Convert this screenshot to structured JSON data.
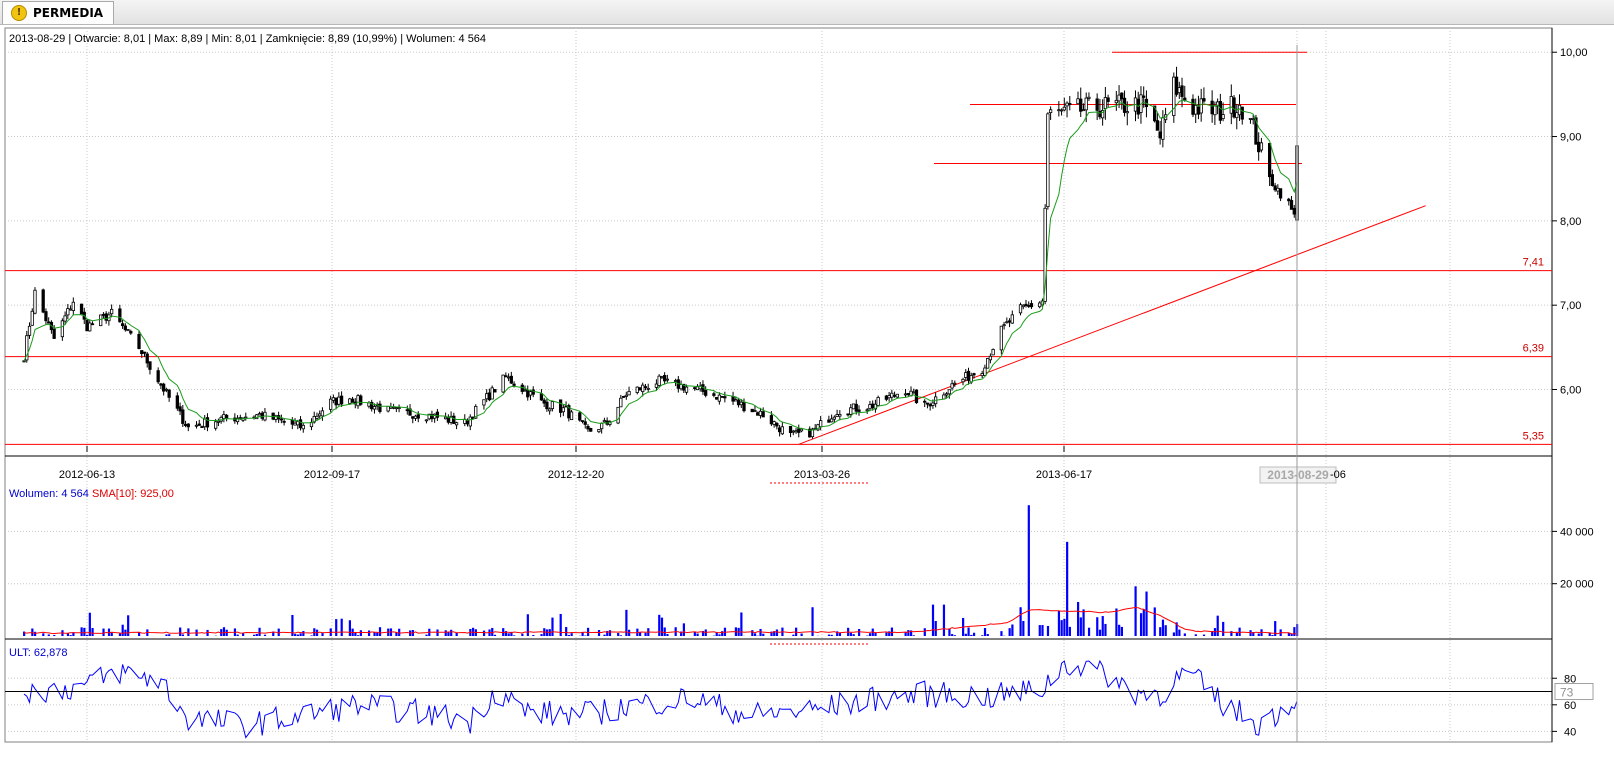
{
  "tab": {
    "label": "PERMEDIA",
    "icon": "warning-icon"
  },
  "colors": {
    "candle_up": "#ffffff",
    "candle_down": "#000000",
    "ma_line": "#1a9c1a",
    "level_line": "#ff0000",
    "volume_bar": "#0000ff",
    "volume_sma": "#ff0000",
    "ult_line": "#0000ff",
    "grid": "#c8c8c8"
  },
  "chart_data": [
    {
      "type": "candlestick",
      "info": {
        "date": "2013-08-29",
        "open_label": "Otwarcie: 8,01",
        "max_label": "Max: 8,89",
        "min_label": "Min: 8,01",
        "close_label": "Zamknięcie: 8,89 (10,99%)",
        "volume_label": "Wolumen: 4 564"
      },
      "x_ticks": [
        "2012-06-13",
        "2012-09-17",
        "2012-12-20",
        "2013-03-26",
        "2013-06-17",
        "2013-08-29",
        "-06"
      ],
      "y_ticks": [
        "10,00",
        "9,00",
        "8,00",
        "7,00",
        "6,00"
      ],
      "y_tick_values": [
        10,
        9,
        8,
        7,
        6
      ],
      "ylim": [
        5.33,
        10.05
      ],
      "price_levels": [
        {
          "value": 7.41,
          "label": "7,41"
        },
        {
          "value": 6.39,
          "label": "6,39"
        },
        {
          "value": 5.35,
          "label": "5,35"
        }
      ],
      "short_levels": [
        10.0,
        9.38,
        8.68
      ],
      "trendline": {
        "from": [
          "2013-02-28",
          5.35
        ],
        "to": [
          "2013-10-15",
          8.18
        ]
      },
      "last_close": 8.89,
      "anchors": [
        [
          "2012-05-21",
          6.4
        ],
        [
          "2012-05-25",
          7.15
        ],
        [
          "2012-06-01",
          6.6
        ],
        [
          "2012-06-08",
          7.05
        ],
        [
          "2012-06-13",
          6.75
        ],
        [
          "2012-06-22",
          6.9
        ],
        [
          "2012-07-02",
          6.5
        ],
        [
          "2012-07-12",
          5.95
        ],
        [
          "2012-07-20",
          5.55
        ],
        [
          "2012-08-01",
          5.65
        ],
        [
          "2012-08-15",
          5.7
        ],
        [
          "2012-08-31",
          5.55
        ],
        [
          "2012-09-10",
          5.85
        ],
        [
          "2012-09-17",
          5.9
        ],
        [
          "2012-10-01",
          5.75
        ],
        [
          "2012-10-15",
          5.7
        ],
        [
          "2012-10-29",
          5.6
        ],
        [
          "2012-11-06",
          5.9
        ],
        [
          "2012-11-13",
          6.15
        ],
        [
          "2012-11-26",
          5.85
        ],
        [
          "2012-12-05",
          5.75
        ],
        [
          "2012-12-13",
          5.5
        ],
        [
          "2012-12-20",
          5.6
        ],
        [
          "2012-12-27",
          5.95
        ],
        [
          "2013-01-08",
          6.1
        ],
        [
          "2013-01-22",
          6.0
        ],
        [
          "2013-02-05",
          5.85
        ],
        [
          "2013-02-15",
          5.7
        ],
        [
          "2013-02-25",
          5.45
        ],
        [
          "2013-03-05",
          5.5
        ],
        [
          "2013-03-14",
          5.75
        ],
        [
          "2013-03-26",
          5.8
        ],
        [
          "2013-04-08",
          6.0
        ],
        [
          "2013-04-15",
          5.8
        ],
        [
          "2013-04-25",
          6.05
        ],
        [
          "2013-05-06",
          6.25
        ],
        [
          "2013-05-13",
          6.7
        ],
        [
          "2013-05-20",
          6.95
        ],
        [
          "2013-05-28",
          7.05
        ],
        [
          "2013-05-30",
          9.25
        ],
        [
          "2013-06-17",
          9.35
        ],
        [
          "2013-07-04",
          9.38
        ],
        [
          "2013-07-10",
          9.0
        ],
        [
          "2013-07-15",
          9.6
        ],
        [
          "2013-07-22",
          9.35
        ],
        [
          "2013-08-01",
          9.3
        ],
        [
          "2013-08-08",
          9.4
        ],
        [
          "2013-08-13",
          9.1
        ],
        [
          "2013-08-19",
          8.5
        ],
        [
          "2013-08-26",
          8.2
        ],
        [
          "2013-08-28",
          8.05
        ],
        [
          "2013-08-29",
          8.89
        ]
      ]
    },
    {
      "type": "bar",
      "legend": {
        "volume_label": "Wolumen: 4 564",
        "sma_label": "SMA[10]: 925,00"
      },
      "y_ticks": [
        "40 000",
        "20 000"
      ],
      "y_tick_values": [
        40000,
        20000
      ],
      "ylim": [
        0,
        52000
      ],
      "spikes": [
        [
          "2013-05-23",
          50000
        ],
        [
          "2013-06-06",
          36000
        ],
        [
          "2013-05-20",
          11000
        ],
        [
          "2013-05-26",
          12000
        ],
        [
          "2013-06-10",
          13000
        ],
        [
          "2013-07-01",
          19000
        ],
        [
          "2013-07-05",
          17000
        ],
        [
          "2013-04-18",
          12000
        ],
        [
          "2013-04-22",
          12000
        ],
        [
          "2013-03-05",
          11000
        ],
        [
          "2013-02-07",
          9000
        ],
        [
          "2012-12-27",
          10000
        ]
      ],
      "sma": [
        [
          "2012-05-21",
          1200
        ],
        [
          "2013-04-10",
          1500
        ],
        [
          "2013-05-15",
          5000
        ],
        [
          "2013-05-23",
          10000
        ],
        [
          "2013-06-20",
          9000
        ],
        [
          "2013-07-01",
          11000
        ],
        [
          "2013-07-10",
          8000
        ],
        [
          "2013-07-20",
          2000
        ],
        [
          "2013-08-29",
          925
        ]
      ]
    },
    {
      "type": "line",
      "legend_label": "ULT: 62,878",
      "y_ticks": [
        "80",
        "60",
        "40"
      ],
      "y_tick_values": [
        80,
        60,
        40
      ],
      "ylim": [
        32,
        96
      ],
      "reference_line": 70,
      "cursor_label": "73",
      "anchors": [
        [
          "2012-05-21",
          70
        ],
        [
          "2012-06-10",
          73
        ],
        [
          "2012-06-25",
          85
        ],
        [
          "2012-07-10",
          78
        ],
        [
          "2012-07-20",
          50
        ],
        [
          "2012-08-10",
          45
        ],
        [
          "2012-08-31",
          52
        ],
        [
          "2012-09-20",
          60
        ],
        [
          "2012-10-10",
          55
        ],
        [
          "2012-10-31",
          48
        ],
        [
          "2012-11-10",
          72
        ],
        [
          "2012-11-20",
          55
        ],
        [
          "2012-12-10",
          52
        ],
        [
          "2012-12-31",
          60
        ],
        [
          "2013-01-20",
          65
        ],
        [
          "2013-02-10",
          52
        ],
        [
          "2013-03-05",
          56
        ],
        [
          "2013-03-26",
          64
        ],
        [
          "2013-04-15",
          68
        ],
        [
          "2013-05-10",
          66
        ],
        [
          "2013-05-28",
          72
        ],
        [
          "2013-06-05",
          91
        ],
        [
          "2013-06-17",
          88
        ],
        [
          "2013-06-30",
          70
        ],
        [
          "2013-07-10",
          68
        ],
        [
          "2013-07-20",
          85
        ],
        [
          "2013-08-01",
          62
        ],
        [
          "2013-08-15",
          46
        ],
        [
          "2013-08-29",
          62.878
        ]
      ]
    }
  ]
}
